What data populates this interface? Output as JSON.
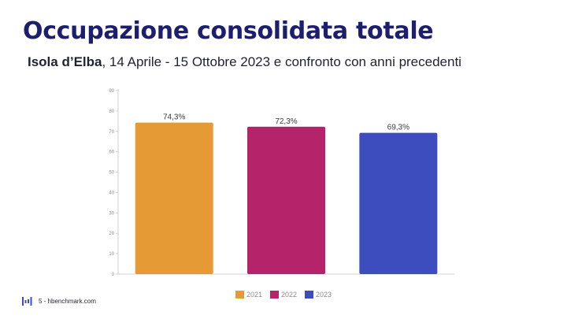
{
  "slide": {
    "title": "Occupazione consolidata totale",
    "subtitle_strong": "Isola d’Elba",
    "subtitle_rest": ", 14 Aprile - 15 Ottobre 2023 e confronto con anni precedenti"
  },
  "footer": {
    "page_text": "5 - hbenchmark.com",
    "logo_icon": "hbenchmark-logo-icon"
  },
  "colors": {
    "title": "#1c1f6e",
    "logo": "#3b4bd0"
  },
  "chart_data": {
    "type": "bar",
    "categories": [
      "2021",
      "2022",
      "2023"
    ],
    "values": [
      74.3,
      72.3,
      69.3
    ],
    "value_labels": [
      "74,3%",
      "72,3%",
      "69,3%"
    ],
    "colors": [
      "#E59A35",
      "#B5236A",
      "#3D4DBE"
    ],
    "ylim": [
      0,
      90
    ],
    "yticks": [
      0,
      10,
      20,
      30,
      40,
      50,
      60,
      70,
      80,
      90
    ],
    "legend": [
      "2021",
      "2022",
      "2023"
    ],
    "legend_position": "bottom",
    "grid": false
  }
}
